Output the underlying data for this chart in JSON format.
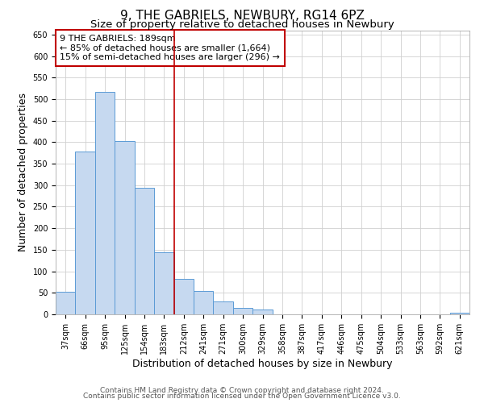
{
  "title": "9, THE GABRIELS, NEWBURY, RG14 6PZ",
  "subtitle": "Size of property relative to detached houses in Newbury",
  "xlabel": "Distribution of detached houses by size in Newbury",
  "ylabel": "Number of detached properties",
  "bar_labels": [
    "37sqm",
    "66sqm",
    "95sqm",
    "125sqm",
    "154sqm",
    "183sqm",
    "212sqm",
    "241sqm",
    "271sqm",
    "300sqm",
    "329sqm",
    "358sqm",
    "387sqm",
    "417sqm",
    "446sqm",
    "475sqm",
    "504sqm",
    "533sqm",
    "563sqm",
    "592sqm",
    "621sqm"
  ],
  "bar_values": [
    52,
    378,
    517,
    403,
    294,
    145,
    82,
    55,
    30,
    15,
    12,
    0,
    0,
    0,
    0,
    0,
    0,
    0,
    0,
    0,
    3
  ],
  "bar_color": "#c6d9f0",
  "bar_edgecolor": "#5b9bd5",
  "vline_index": 5,
  "vertical_line_color": "#c00000",
  "annotation_text": "9 THE GABRIELS: 189sqm\n← 85% of detached houses are smaller (1,664)\n15% of semi-detached houses are larger (296) →",
  "annotation_box_edgecolor": "#c00000",
  "annotation_box_facecolor": "white",
  "ylim": [
    0,
    660
  ],
  "yticks": [
    0,
    50,
    100,
    150,
    200,
    250,
    300,
    350,
    400,
    450,
    500,
    550,
    600,
    650
  ],
  "footer_line1": "Contains HM Land Registry data © Crown copyright and database right 2024.",
  "footer_line2": "Contains public sector information licensed under the Open Government Licence v3.0.",
  "background_color": "#ffffff",
  "grid_color": "#d0d0d0",
  "title_fontsize": 11,
  "subtitle_fontsize": 9.5,
  "axis_label_fontsize": 9,
  "tick_fontsize": 7,
  "annotation_fontsize": 8,
  "footer_fontsize": 6.5
}
